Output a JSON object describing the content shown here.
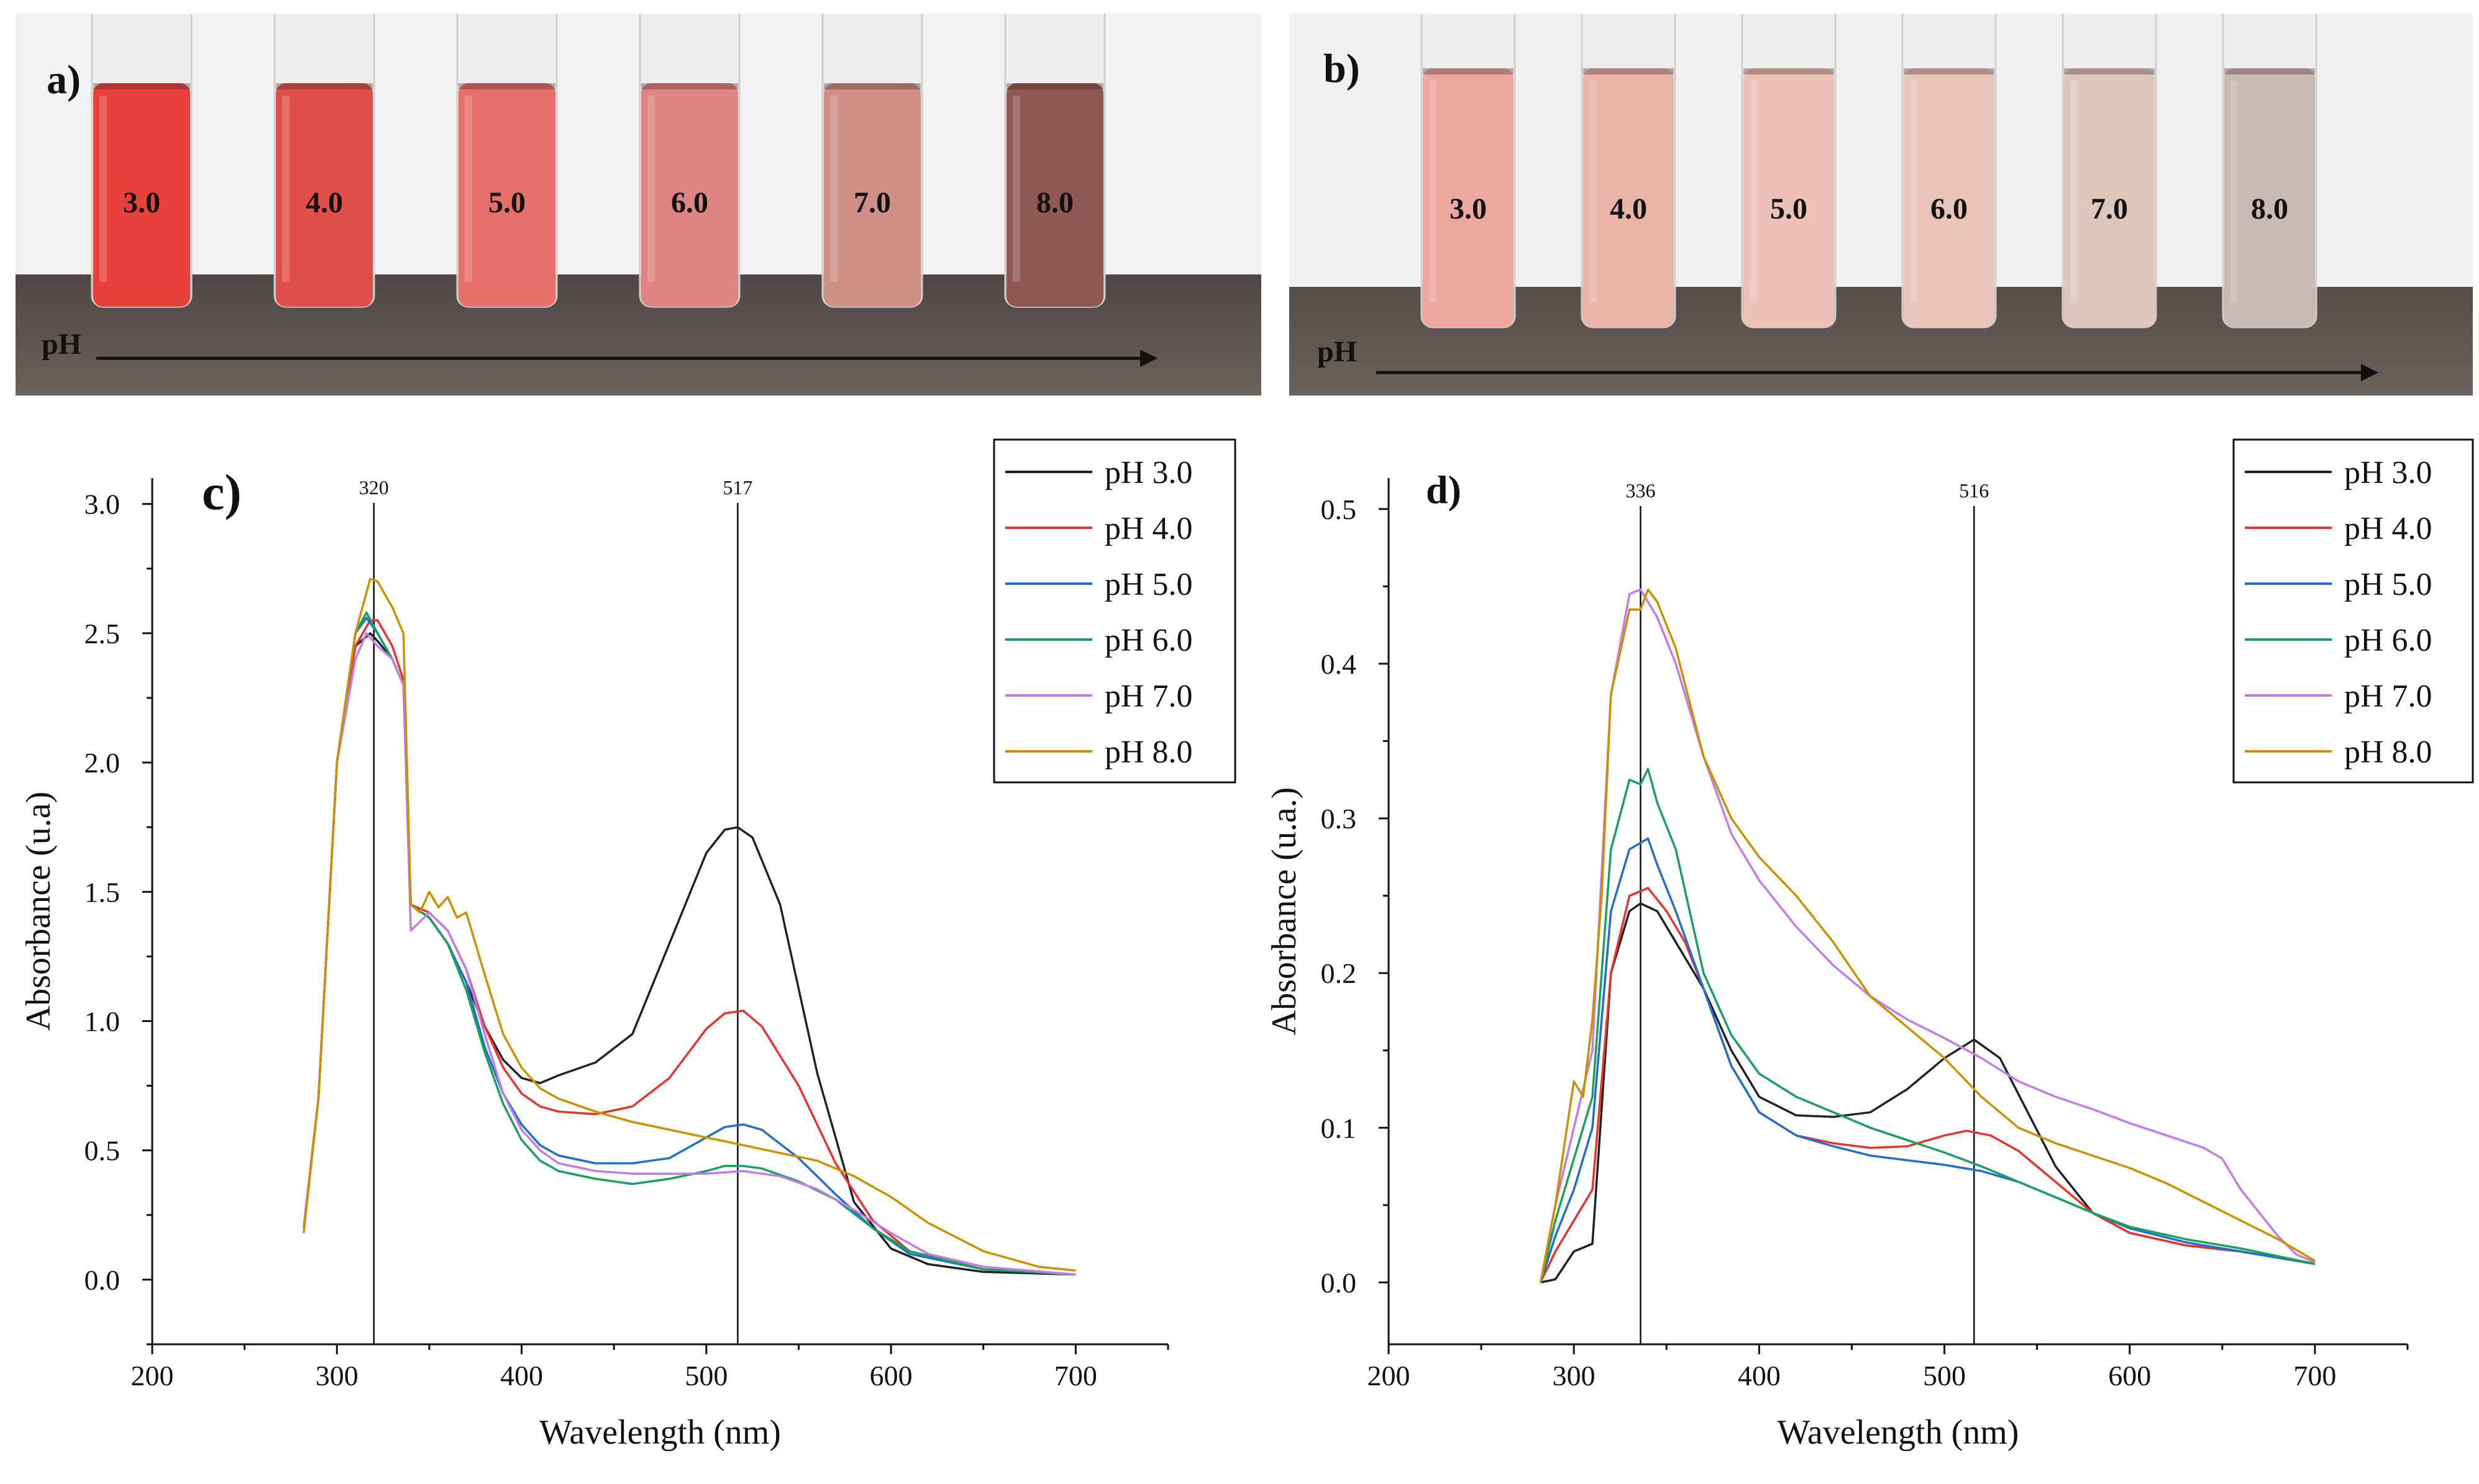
{
  "photos": [
    {
      "id": "a",
      "panel_label": "a)",
      "axis_label": "pH",
      "tube_labels": [
        "3.0",
        "4.0",
        "5.0",
        "6.0",
        "7.0",
        "8.0"
      ],
      "tube_colors": [
        "#e8413c",
        "#e0504a",
        "#e5706a",
        "#de8482",
        "#cf9088",
        "#8f5852"
      ],
      "background_color": "#f1f1f1",
      "bench_color": "#4f4743"
    },
    {
      "id": "b",
      "panel_label": "b)",
      "axis_label": "pH",
      "tube_labels": [
        "3.0",
        "4.0",
        "5.0",
        "6.0",
        "7.0",
        "8.0"
      ],
      "tube_colors": [
        "#eda79f",
        "#e9b3a8",
        "#ecc1b6",
        "#e9c4b9",
        "#ddc6bc",
        "#c9b9b4"
      ],
      "background_color": "#f0f0f0",
      "bench_color": "#554d48"
    }
  ],
  "chart_data": [
    {
      "id": "c",
      "type": "line",
      "panel_label": "c)",
      "xlabel": "Wavelength (nm)",
      "ylabel": "Absorbance (u.a)",
      "xlim": [
        200,
        750
      ],
      "ylim": [
        -0.25,
        3.1
      ],
      "xticks": [
        "200",
        "300",
        "400",
        "500",
        "600",
        "700"
      ],
      "xtick_values": [
        200,
        300,
        400,
        500,
        600,
        700
      ],
      "yticks": [
        "0.0",
        "0.5",
        "1.0",
        "1.5",
        "2.0",
        "2.5",
        "3.0"
      ],
      "ytick_values": [
        0,
        0.5,
        1.0,
        1.5,
        2.0,
        2.5,
        3.0
      ],
      "reference_lines": [
        {
          "x": 320,
          "label": "320"
        },
        {
          "x": 517,
          "label": "517"
        }
      ],
      "legend_position": "top-right",
      "series": [
        {
          "name": "pH 3.0",
          "color": "#222222",
          "x": [
            282,
            290,
            300,
            310,
            318,
            322,
            330,
            336,
            340,
            350,
            360,
            370,
            380,
            390,
            400,
            410,
            420,
            440,
            460,
            480,
            500,
            510,
            517,
            525,
            540,
            560,
            580,
            600,
            620,
            650,
            700
          ],
          "y": [
            0.2,
            0.7,
            2.0,
            2.45,
            2.5,
            2.47,
            2.4,
            2.3,
            1.45,
            1.4,
            1.3,
            1.15,
            0.98,
            0.85,
            0.78,
            0.76,
            0.79,
            0.84,
            0.95,
            1.3,
            1.65,
            1.74,
            1.75,
            1.71,
            1.45,
            0.8,
            0.3,
            0.12,
            0.06,
            0.03,
            0.02
          ]
        },
        {
          "name": "pH 4.0",
          "color": "#e8332e",
          "x": [
            282,
            290,
            300,
            310,
            318,
            322,
            330,
            336,
            340,
            350,
            360,
            370,
            380,
            390,
            400,
            410,
            420,
            440,
            460,
            480,
            500,
            510,
            520,
            530,
            550,
            570,
            590,
            610,
            650,
            700
          ],
          "y": [
            0.2,
            0.7,
            2.0,
            2.45,
            2.55,
            2.55,
            2.45,
            2.32,
            1.45,
            1.42,
            1.35,
            1.2,
            0.98,
            0.82,
            0.72,
            0.67,
            0.65,
            0.64,
            0.67,
            0.78,
            0.97,
            1.03,
            1.04,
            0.98,
            0.75,
            0.45,
            0.23,
            0.11,
            0.04,
            0.02
          ]
        },
        {
          "name": "pH 5.0",
          "color": "#1f6fd1",
          "x": [
            282,
            290,
            300,
            310,
            316,
            322,
            330,
            336,
            340,
            350,
            360,
            370,
            380,
            390,
            400,
            410,
            420,
            440,
            460,
            480,
            500,
            510,
            520,
            530,
            550,
            570,
            590,
            610,
            650,
            700
          ],
          "y": [
            0.2,
            0.7,
            2.0,
            2.5,
            2.56,
            2.5,
            2.4,
            2.3,
            1.45,
            1.4,
            1.3,
            1.15,
            0.9,
            0.72,
            0.6,
            0.52,
            0.48,
            0.45,
            0.45,
            0.47,
            0.55,
            0.59,
            0.6,
            0.58,
            0.47,
            0.33,
            0.2,
            0.1,
            0.04,
            0.02
          ]
        },
        {
          "name": "pH 6.0",
          "color": "#1aa05e",
          "x": [
            282,
            290,
            300,
            310,
            316,
            322,
            330,
            336,
            340,
            350,
            360,
            370,
            380,
            390,
            400,
            410,
            420,
            440,
            460,
            480,
            500,
            510,
            520,
            530,
            550,
            570,
            590,
            610,
            650,
            700
          ],
          "y": [
            0.2,
            0.7,
            2.0,
            2.5,
            2.58,
            2.5,
            2.4,
            2.3,
            1.45,
            1.4,
            1.3,
            1.12,
            0.88,
            0.68,
            0.54,
            0.46,
            0.42,
            0.39,
            0.37,
            0.39,
            0.42,
            0.44,
            0.44,
            0.43,
            0.38,
            0.31,
            0.2,
            0.11,
            0.04,
            0.02
          ]
        },
        {
          "name": "pH 7.0",
          "color": "#c37be8",
          "x": [
            282,
            290,
            300,
            310,
            316,
            322,
            330,
            336,
            340,
            350,
            360,
            370,
            380,
            390,
            400,
            410,
            420,
            440,
            460,
            480,
            500,
            520,
            540,
            560,
            580,
            600,
            620,
            650,
            700
          ],
          "y": [
            0.2,
            0.7,
            2.0,
            2.4,
            2.5,
            2.45,
            2.4,
            2.3,
            1.35,
            1.42,
            1.35,
            1.2,
            0.95,
            0.72,
            0.58,
            0.5,
            0.45,
            0.42,
            0.41,
            0.41,
            0.41,
            0.42,
            0.4,
            0.35,
            0.27,
            0.18,
            0.1,
            0.05,
            0.02
          ]
        },
        {
          "name": "pH 8.0",
          "color": "#cc9000",
          "x": [
            282,
            290,
            300,
            310,
            318,
            322,
            330,
            336,
            340,
            345,
            350,
            355,
            360,
            365,
            370,
            380,
            390,
            400,
            410,
            420,
            440,
            460,
            480,
            500,
            520,
            540,
            560,
            580,
            600,
            620,
            650,
            680,
            700
          ],
          "y": [
            0.18,
            0.7,
            2.0,
            2.5,
            2.71,
            2.7,
            2.6,
            2.5,
            1.45,
            1.42,
            1.5,
            1.44,
            1.48,
            1.4,
            1.42,
            1.18,
            0.95,
            0.82,
            0.74,
            0.7,
            0.65,
            0.61,
            0.58,
            0.55,
            0.52,
            0.49,
            0.46,
            0.4,
            0.32,
            0.22,
            0.11,
            0.05,
            0.035
          ]
        }
      ]
    },
    {
      "id": "d",
      "type": "line",
      "panel_label": "d)",
      "xlabel": "Wavelength (nm)",
      "ylabel": "Absorbance (u.a.)",
      "xlim": [
        200,
        750
      ],
      "ylim": [
        -0.04,
        0.52
      ],
      "xticks": [
        "200",
        "300",
        "400",
        "500",
        "600",
        "700"
      ],
      "xtick_values": [
        200,
        300,
        400,
        500,
        600,
        700
      ],
      "yticks": [
        "0.0",
        "0.1",
        "0.2",
        "0.3",
        "0.4",
        "0.5"
      ],
      "ytick_values": [
        0,
        0.1,
        0.2,
        0.3,
        0.4,
        0.5
      ],
      "reference_lines": [
        {
          "x": 336,
          "label": "336"
        },
        {
          "x": 516,
          "label": "516"
        }
      ],
      "legend_position": "top-right",
      "series": [
        {
          "name": "pH 3.0",
          "color": "#222222",
          "x": [
            282,
            290,
            300,
            310,
            320,
            330,
            336,
            345,
            355,
            370,
            385,
            400,
            420,
            440,
            460,
            480,
            500,
            516,
            530,
            545,
            560,
            580,
            600,
            630,
            660,
            700
          ],
          "y": [
            0.0,
            0.002,
            0.02,
            0.025,
            0.2,
            0.24,
            0.245,
            0.24,
            0.22,
            0.19,
            0.15,
            0.12,
            0.108,
            0.107,
            0.11,
            0.125,
            0.145,
            0.157,
            0.145,
            0.11,
            0.075,
            0.045,
            0.032,
            0.024,
            0.02,
            0.012
          ]
        },
        {
          "name": "pH 4.0",
          "color": "#e8332e",
          "x": [
            282,
            290,
            300,
            310,
            320,
            330,
            340,
            350,
            360,
            370,
            385,
            400,
            420,
            440,
            460,
            480,
            500,
            512,
            525,
            540,
            560,
            580,
            600,
            630,
            660,
            700
          ],
          "y": [
            0.0,
            0.02,
            0.04,
            0.06,
            0.2,
            0.25,
            0.255,
            0.24,
            0.22,
            0.19,
            0.14,
            0.11,
            0.095,
            0.09,
            0.087,
            0.088,
            0.095,
            0.098,
            0.095,
            0.085,
            0.065,
            0.045,
            0.032,
            0.024,
            0.02,
            0.012
          ]
        },
        {
          "name": "pH 5.0",
          "color": "#1f6fd1",
          "x": [
            282,
            290,
            300,
            310,
            320,
            330,
            340,
            345,
            355,
            370,
            385,
            400,
            420,
            440,
            460,
            480,
            500,
            520,
            540,
            560,
            580,
            600,
            630,
            660,
            700
          ],
          "y": [
            0.0,
            0.03,
            0.06,
            0.1,
            0.24,
            0.28,
            0.287,
            0.27,
            0.24,
            0.19,
            0.14,
            0.11,
            0.095,
            0.088,
            0.082,
            0.079,
            0.076,
            0.072,
            0.065,
            0.055,
            0.045,
            0.035,
            0.026,
            0.02,
            0.012
          ]
        },
        {
          "name": "pH 6.0",
          "color": "#1aa05e",
          "x": [
            282,
            290,
            300,
            310,
            320,
            330,
            336,
            340,
            345,
            355,
            370,
            385,
            400,
            420,
            440,
            460,
            480,
            500,
            520,
            540,
            560,
            580,
            600,
            630,
            660,
            700
          ],
          "y": [
            0.0,
            0.04,
            0.08,
            0.12,
            0.28,
            0.325,
            0.322,
            0.332,
            0.31,
            0.28,
            0.2,
            0.16,
            0.135,
            0.12,
            0.11,
            0.1,
            0.092,
            0.084,
            0.075,
            0.065,
            0.055,
            0.045,
            0.036,
            0.028,
            0.022,
            0.012
          ]
        },
        {
          "name": "pH 7.0",
          "color": "#c37be8",
          "x": [
            282,
            290,
            300,
            310,
            320,
            330,
            336,
            345,
            355,
            370,
            385,
            400,
            420,
            440,
            460,
            480,
            500,
            520,
            540,
            560,
            580,
            600,
            620,
            640,
            650,
            660,
            670,
            680,
            690,
            700
          ],
          "y": [
            0.0,
            0.05,
            0.1,
            0.15,
            0.38,
            0.445,
            0.448,
            0.43,
            0.4,
            0.34,
            0.29,
            0.26,
            0.23,
            0.205,
            0.185,
            0.17,
            0.158,
            0.145,
            0.13,
            0.12,
            0.112,
            0.103,
            0.095,
            0.087,
            0.08,
            0.06,
            0.045,
            0.03,
            0.018,
            0.013
          ]
        },
        {
          "name": "pH 8.0",
          "color": "#cc9000",
          "x": [
            282,
            290,
            300,
            305,
            310,
            315,
            320,
            330,
            336,
            340,
            345,
            355,
            370,
            385,
            400,
            420,
            440,
            460,
            480,
            500,
            520,
            540,
            560,
            580,
            600,
            620,
            640,
            660,
            680,
            700
          ],
          "y": [
            0.0,
            0.05,
            0.13,
            0.12,
            0.17,
            0.25,
            0.38,
            0.435,
            0.435,
            0.448,
            0.44,
            0.41,
            0.34,
            0.3,
            0.275,
            0.25,
            0.22,
            0.185,
            0.165,
            0.145,
            0.12,
            0.1,
            0.09,
            0.082,
            0.074,
            0.064,
            0.052,
            0.04,
            0.028,
            0.014
          ]
        }
      ]
    }
  ]
}
